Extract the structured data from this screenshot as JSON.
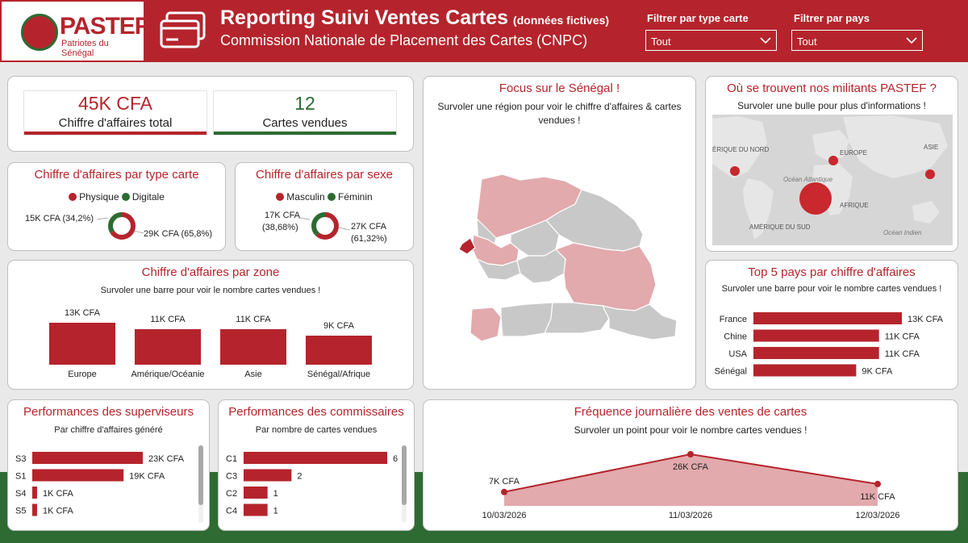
{
  "colors": {
    "primary": "#b5242c",
    "secondary": "#2e6b33",
    "light_red": "#e2aaad",
    "grey": "#c8c8c8"
  },
  "header": {
    "logo_text": "PASTEF",
    "logo_sub": "Patriotes du Sénégal",
    "title": "Reporting Suivi Ventes Cartes",
    "title_note": "(données fictives)",
    "subtitle": "Commission Nationale de Placement des Cartes (CNPC)",
    "filters": [
      {
        "label": "Filtrer par type carte",
        "value": "Tout"
      },
      {
        "label": "Filtrer par pays",
        "value": "Tout"
      }
    ]
  },
  "kpis": [
    {
      "value": "45K CFA",
      "label": "Chiffre d'affaires total"
    },
    {
      "value": "12",
      "label": "Cartes vendues"
    }
  ],
  "donut_type": {
    "title": "Chiffre d'affaires par type carte",
    "legend": [
      "Physique",
      "Digitale"
    ],
    "label_small": "15K CFA (34,2%)",
    "label_large": "29K CFA (65,8%)",
    "chart_data": {
      "type": "pie",
      "labels": [
        "Physique",
        "Digitale"
      ],
      "values": [
        65.8,
        34.2
      ]
    }
  },
  "donut_sexe": {
    "title": "Chiffre d'affaires par sexe",
    "legend": [
      "Masculin",
      "Féminin"
    ],
    "label_small_1": "17K CFA",
    "label_small_2": "(38,68%)",
    "label_large_1": "27K CFA",
    "label_large_2": "(61,32%)",
    "chart_data": {
      "type": "pie",
      "labels": [
        "Masculin",
        "Féminin"
      ],
      "values": [
        61.32,
        38.68
      ]
    }
  },
  "zone": {
    "title": "Chiffre d'affaires par zone",
    "subtitle": "Survoler une barre pour voir le nombre cartes vendues !",
    "chart_data": {
      "type": "bar",
      "categories": [
        "Europe",
        "Amérique/Océanie",
        "Asie",
        "Sénégal/Afrique"
      ],
      "values": [
        13,
        11,
        11,
        9
      ],
      "labels": [
        "13K CFA",
        "11K CFA",
        "11K CFA",
        "9K CFA"
      ],
      "ylim": [
        0,
        13
      ]
    }
  },
  "senegal": {
    "title": "Focus sur le Sénégal !",
    "subtitle": "Survoler une région pour voir le chiffre d'affaires & cartes vendues !"
  },
  "militants": {
    "title": "Où se trouvent nos militants PASTEF ?",
    "subtitle": "Survoler une bulle pour plus d'informations !",
    "map_labels": [
      "ÉRIQUE DU NORD",
      "EUROPE",
      "ASIE",
      "Océan Atlantique",
      "AFRIQUE",
      "AMÉRIQUE DU SUD",
      "Océan Indien"
    ]
  },
  "top5": {
    "title": "Top 5 pays par chiffre d'affaires",
    "subtitle": "Survoler une barre pour voir le nombre cartes vendues !",
    "chart_data": {
      "type": "bar",
      "categories": [
        "France",
        "Chine",
        "USA",
        "Sénégal"
      ],
      "values": [
        13,
        11,
        11,
        9
      ],
      "labels": [
        "13K CFA",
        "11K CFA",
        "11K CFA",
        "9K CFA"
      ]
    }
  },
  "superviseurs": {
    "title": "Performances des superviseurs",
    "subtitle": "Par chiffre d'affaires généré",
    "chart_data": {
      "type": "bar",
      "categories": [
        "S3",
        "S1",
        "S4",
        "S5"
      ],
      "values": [
        23,
        19,
        1,
        1
      ],
      "labels": [
        "23K CFA",
        "19K CFA",
        "1K CFA",
        "1K CFA"
      ]
    }
  },
  "commissaires": {
    "title": "Performances des commissaires",
    "subtitle": "Par nombre de cartes vendues",
    "chart_data": {
      "type": "bar",
      "categories": [
        "C1",
        "C3",
        "C2",
        "C4"
      ],
      "values": [
        6,
        2,
        1,
        1
      ],
      "labels": [
        "6",
        "2",
        "1",
        "1"
      ]
    }
  },
  "frequence": {
    "title": "Fréquence journalière des ventes de cartes",
    "subtitle": "Survoler un point pour voir le nombre cartes vendues !",
    "chart_data": {
      "type": "area",
      "x": [
        "10/03/2026",
        "11/03/2026",
        "12/03/2026"
      ],
      "values": [
        7,
        26,
        11
      ],
      "labels": [
        "7K CFA",
        "26K CFA",
        "11K CFA"
      ],
      "ylim": [
        0,
        26
      ]
    }
  }
}
